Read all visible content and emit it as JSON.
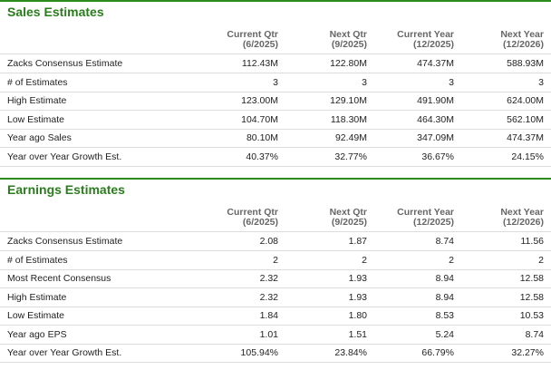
{
  "sections": [
    {
      "title": "Sales Estimates",
      "columns": [
        [
          "Current Qtr",
          "(6/2025)"
        ],
        [
          "Next Qtr",
          "(9/2025)"
        ],
        [
          "Current Year",
          "(12/2025)"
        ],
        [
          "Next Year",
          "(12/2026)"
        ]
      ],
      "rows": [
        {
          "label": "Zacks Consensus Estimate",
          "values": [
            "112.43M",
            "122.80M",
            "474.37M",
            "588.93M"
          ]
        },
        {
          "label": "# of Estimates",
          "values": [
            "3",
            "3",
            "3",
            "3"
          ]
        },
        {
          "label": "High Estimate",
          "values": [
            "123.00M",
            "129.10M",
            "491.90M",
            "624.00M"
          ]
        },
        {
          "label": "Low Estimate",
          "values": [
            "104.70M",
            "118.30M",
            "464.30M",
            "562.10M"
          ]
        },
        {
          "label": "Year ago Sales",
          "values": [
            "80.10M",
            "92.49M",
            "347.09M",
            "474.37M"
          ]
        },
        {
          "label": "Year over Year Growth Est.",
          "values": [
            "40.37%",
            "32.77%",
            "36.67%",
            "24.15%"
          ]
        }
      ]
    },
    {
      "title": "Earnings Estimates",
      "columns": [
        [
          "Current Qtr",
          "(6/2025)"
        ],
        [
          "Next Qtr",
          "(9/2025)"
        ],
        [
          "Current Year",
          "(12/2025)"
        ],
        [
          "Next Year",
          "(12/2026)"
        ]
      ],
      "rows": [
        {
          "label": "Zacks Consensus Estimate",
          "values": [
            "2.08",
            "1.87",
            "8.74",
            "11.56"
          ]
        },
        {
          "label": "# of Estimates",
          "values": [
            "2",
            "2",
            "2",
            "2"
          ]
        },
        {
          "label": "Most Recent Consensus",
          "values": [
            "2.32",
            "1.93",
            "8.94",
            "12.58"
          ]
        },
        {
          "label": "High Estimate",
          "values": [
            "2.32",
            "1.93",
            "8.94",
            "12.58"
          ]
        },
        {
          "label": "Low Estimate",
          "values": [
            "1.84",
            "1.80",
            "8.53",
            "10.53"
          ]
        },
        {
          "label": "Year ago EPS",
          "values": [
            "1.01",
            "1.51",
            "5.24",
            "8.74"
          ]
        },
        {
          "label": "Year over Year Growth Est.",
          "values": [
            "105.94%",
            "23.84%",
            "66.79%",
            "32.27%"
          ]
        }
      ]
    }
  ]
}
